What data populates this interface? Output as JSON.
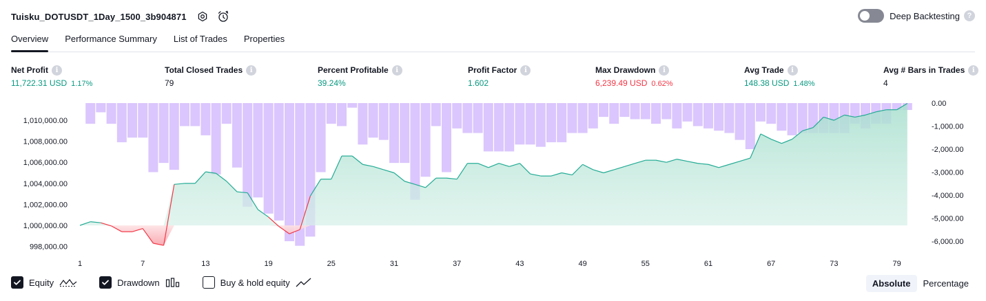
{
  "strategy": {
    "title": "Tuisku_DOTUSDT_1Day_1500_3b904871"
  },
  "icons": {
    "settings": "settings-icon",
    "alert": "alert-clock-icon"
  },
  "deep_backtesting": {
    "label": "Deep Backtesting",
    "enabled": false,
    "help": "?"
  },
  "tabs": [
    {
      "label": "Overview",
      "active": true
    },
    {
      "label": "Performance Summary",
      "active": false
    },
    {
      "label": "List of Trades",
      "active": false
    },
    {
      "label": "Properties",
      "active": false
    }
  ],
  "metrics": {
    "net_profit": {
      "label": "Net Profit",
      "value": "11,722.31 USD",
      "pct": "1.17%"
    },
    "total_closed_trades": {
      "label": "Total Closed Trades",
      "value": "79"
    },
    "percent_profitable": {
      "label": "Percent Profitable",
      "value": "39.24%"
    },
    "profit_factor": {
      "label": "Profit Factor",
      "value": "1.602"
    },
    "max_drawdown": {
      "label": "Max Drawdown",
      "value": "6,239.49 USD",
      "pct": "0.62%"
    },
    "avg_trade": {
      "label": "Avg Trade",
      "value": "148.38 USD",
      "pct": "1.48%"
    },
    "avg_bars": {
      "label": "Avg # Bars in Trades",
      "value": "4"
    },
    "info_glyph": "i"
  },
  "legend": {
    "equity": {
      "label": "Equity",
      "checked": true
    },
    "drawdown": {
      "label": "Drawdown",
      "checked": true
    },
    "buy_hold": {
      "label": "Buy & hold equity",
      "checked": false
    }
  },
  "mode": {
    "absolute": "Absolute",
    "percentage": "Percentage",
    "selected": "Absolute"
  },
  "colors": {
    "equity_line_positive": "#22ab94",
    "equity_line_negative": "#f23645",
    "equity_fill": "#c8ebe2",
    "drawdown_bar": "#d9c3fd",
    "green": "#089981",
    "red": "#f23645"
  },
  "chart_data": {
    "type": "area",
    "x_ticks": [
      "1",
      "7",
      "13",
      "19",
      "25",
      "31",
      "37",
      "43",
      "49",
      "55",
      "61",
      "67",
      "73",
      "79"
    ],
    "left_axis": {
      "ticks": [
        998000,
        1000000,
        1002000,
        1004000,
        1006000,
        1008000,
        1010000
      ],
      "tick_labels": [
        "998,000.00",
        "1,000,000.00",
        "1,002,000.00",
        "1,004,000.00",
        "1,006,000.00",
        "1,008,000.00",
        "1,010,000.00"
      ],
      "range": [
        997500,
        1011600
      ],
      "baseline": 1000000
    },
    "right_axis": {
      "ticks": [
        0,
        -1000,
        -2000,
        -3000,
        -4000,
        -5000,
        -6000
      ],
      "tick_labels": [
        "0.00",
        "-1,000.00",
        "-2,000.00",
        "-3,000.00",
        "-4,000.00",
        "-5,000.00",
        "-6,000.00"
      ],
      "range": [
        -6500,
        0
      ]
    },
    "series": [
      {
        "name": "Equity",
        "x": [
          1,
          2,
          3,
          4,
          5,
          6,
          7,
          8,
          9,
          10,
          11,
          12,
          13,
          14,
          15,
          16,
          17,
          18,
          19,
          20,
          21,
          22,
          23,
          24,
          25,
          26,
          27,
          28,
          29,
          30,
          31,
          32,
          33,
          34,
          35,
          36,
          37,
          38,
          39,
          40,
          41,
          42,
          43,
          44,
          45,
          46,
          47,
          48,
          49,
          50,
          51,
          52,
          53,
          54,
          55,
          56,
          57,
          58,
          59,
          60,
          61,
          62,
          63,
          64,
          65,
          66,
          67,
          68,
          69,
          70,
          71,
          72,
          73,
          74,
          75,
          76,
          77,
          78,
          79,
          80
        ],
        "values": [
          1000000,
          1000350,
          1000250,
          999950,
          999400,
          999400,
          999700,
          998300,
          998100,
          1003900,
          1004000,
          1004000,
          1005100,
          1004950,
          1004200,
          1003200,
          1003100,
          1001500,
          1000800,
          999900,
          999200,
          999600,
          1002800,
          1004400,
          1004400,
          1006600,
          1006600,
          1005800,
          1005600,
          1005300,
          1005000,
          1004200,
          1003900,
          1003600,
          1004500,
          1004500,
          1004400,
          1005900,
          1005900,
          1005500,
          1005900,
          1005600,
          1005900,
          1004900,
          1004700,
          1004700,
          1005000,
          1004800,
          1005800,
          1005300,
          1005000,
          1005300,
          1005600,
          1005900,
          1006200,
          1006200,
          1006000,
          1006300,
          1006100,
          1005900,
          1005800,
          1005500,
          1005800,
          1006100,
          1006400,
          1008700,
          1008200,
          1007800,
          1008200,
          1009000,
          1009300,
          1010300,
          1010000,
          1010500,
          1010300,
          1010500,
          1010800,
          1011000,
          1011000,
          1011600
        ]
      },
      {
        "name": "Drawdown",
        "x": [
          1,
          2,
          3,
          4,
          5,
          6,
          7,
          8,
          9,
          10,
          11,
          12,
          13,
          14,
          15,
          16,
          17,
          18,
          19,
          20,
          21,
          22,
          23,
          24,
          25,
          26,
          27,
          28,
          29,
          30,
          31,
          32,
          33,
          34,
          35,
          36,
          37,
          38,
          39,
          40,
          41,
          42,
          43,
          44,
          45,
          46,
          47,
          48,
          49,
          50,
          51,
          52,
          53,
          54,
          55,
          56,
          57,
          58,
          59,
          60,
          61,
          62,
          63,
          64,
          65,
          66,
          67,
          68,
          69,
          70,
          71,
          72,
          73,
          74,
          75,
          76,
          77,
          78,
          79,
          80
        ],
        "values": [
          0,
          -900,
          -400,
          -900,
          -1700,
          -1500,
          -1500,
          -3000,
          -2600,
          -2900,
          -1000,
          -1000,
          -1400,
          -3100,
          -900,
          -2800,
          -4500,
          -4100,
          -4800,
          -5100,
          -6000,
          -6200,
          -5800,
          -3000,
          -900,
          -1000,
          -200,
          -1800,
          -1500,
          -1600,
          -2600,
          -2600,
          -4200,
          -3200,
          -1000,
          -3000,
          -1100,
          -1300,
          -1300,
          -2100,
          -2100,
          -2100,
          -1800,
          -1800,
          -1900,
          -1700,
          -1700,
          -1300,
          -1300,
          -1100,
          -600,
          -900,
          -600,
          -700,
          -700,
          -900,
          -700,
          -1100,
          -800,
          -1000,
          -1100,
          -1200,
          -1300,
          -1600,
          -2000,
          -800,
          -900,
          -1200,
          -1400,
          -1300,
          -1300,
          -1300,
          -1300,
          -1300,
          -900,
          -1100,
          -900,
          -900,
          -300,
          -300
        ]
      }
    ],
    "legend_position": "bottom-left",
    "grid": false
  }
}
